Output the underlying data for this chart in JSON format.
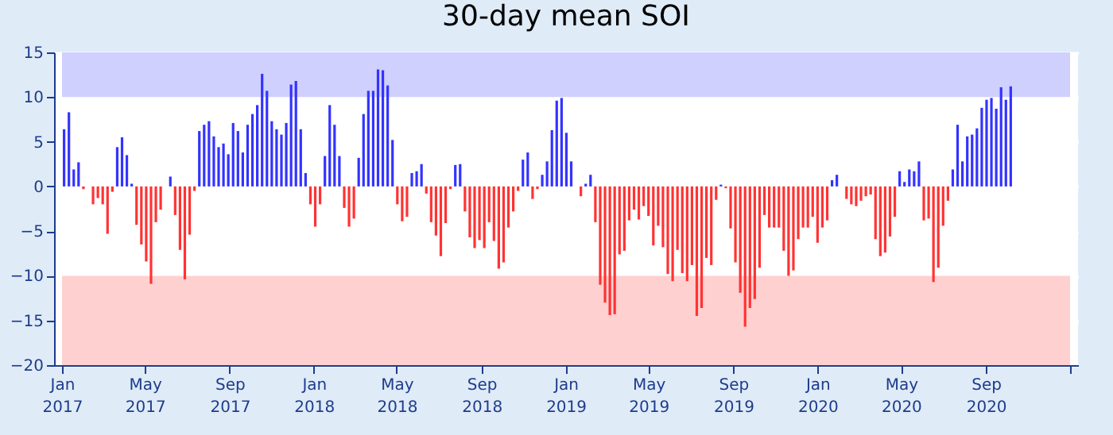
{
  "chart_data": {
    "type": "bar",
    "title": "30-day mean SOI",
    "x": [
      "2017-01-04",
      "2017-01-11",
      "2017-01-18",
      "2017-01-25",
      "2017-02-01",
      "2017-02-08",
      "2017-02-15",
      "2017-02-22",
      "2017-03-01",
      "2017-03-08",
      "2017-03-15",
      "2017-03-22",
      "2017-03-29",
      "2017-04-05",
      "2017-04-12",
      "2017-04-19",
      "2017-04-26",
      "2017-05-03",
      "2017-05-10",
      "2017-05-17",
      "2017-05-24",
      "2017-05-31",
      "2017-06-07",
      "2017-06-14",
      "2017-06-21",
      "2017-06-28",
      "2017-07-05",
      "2017-07-12",
      "2017-07-19",
      "2017-07-26",
      "2017-08-02",
      "2017-08-09",
      "2017-08-16",
      "2017-08-23",
      "2017-08-30",
      "2017-09-06",
      "2017-09-13",
      "2017-09-20",
      "2017-09-27",
      "2017-10-04",
      "2017-10-11",
      "2017-10-18",
      "2017-10-25",
      "2017-11-01",
      "2017-11-08",
      "2017-11-15",
      "2017-11-22",
      "2017-11-29",
      "2017-12-06",
      "2017-12-13",
      "2017-12-20",
      "2017-12-27",
      "2018-01-03",
      "2018-01-10",
      "2018-01-17",
      "2018-01-24",
      "2018-01-31",
      "2018-02-07",
      "2018-02-14",
      "2018-02-21",
      "2018-02-28",
      "2018-03-07",
      "2018-03-14",
      "2018-03-21",
      "2018-03-28",
      "2018-04-04",
      "2018-04-11",
      "2018-04-18",
      "2018-04-25",
      "2018-05-02",
      "2018-05-09",
      "2018-05-16",
      "2018-05-23",
      "2018-05-30",
      "2018-06-06",
      "2018-06-13",
      "2018-06-20",
      "2018-06-27",
      "2018-07-04",
      "2018-07-11",
      "2018-07-18",
      "2018-07-25",
      "2018-08-01",
      "2018-08-08",
      "2018-08-15",
      "2018-08-22",
      "2018-08-29",
      "2018-09-05",
      "2018-09-12",
      "2018-09-19",
      "2018-09-26",
      "2018-10-03",
      "2018-10-10",
      "2018-10-17",
      "2018-10-24",
      "2018-10-31",
      "2018-11-07",
      "2018-11-14",
      "2018-11-21",
      "2018-11-28",
      "2018-12-05",
      "2018-12-12",
      "2018-12-19",
      "2018-12-26",
      "2019-01-02",
      "2019-01-09",
      "2019-01-16",
      "2019-01-23",
      "2019-01-30",
      "2019-02-06",
      "2019-02-13",
      "2019-02-20",
      "2019-02-27",
      "2019-03-06",
      "2019-03-13",
      "2019-03-20",
      "2019-03-27",
      "2019-04-03",
      "2019-04-10",
      "2019-04-17",
      "2019-04-24",
      "2019-05-01",
      "2019-05-08",
      "2019-05-15",
      "2019-05-22",
      "2019-05-29",
      "2019-06-05",
      "2019-06-12",
      "2019-06-19",
      "2019-06-26",
      "2019-07-03",
      "2019-07-10",
      "2019-07-17",
      "2019-07-24",
      "2019-07-31",
      "2019-08-07",
      "2019-08-14",
      "2019-08-21",
      "2019-08-28",
      "2019-09-04",
      "2019-09-11",
      "2019-09-18",
      "2019-09-25",
      "2019-10-02",
      "2019-10-09",
      "2019-10-16",
      "2019-10-23",
      "2019-10-30",
      "2019-11-06",
      "2019-11-13",
      "2019-11-20",
      "2019-11-27",
      "2019-12-04",
      "2019-12-11",
      "2019-12-18",
      "2019-12-25",
      "2020-01-01",
      "2020-01-08",
      "2020-01-15",
      "2020-01-22",
      "2020-01-29",
      "2020-02-05",
      "2020-02-12",
      "2020-02-19",
      "2020-02-26",
      "2020-03-04",
      "2020-03-11",
      "2020-03-18",
      "2020-03-25",
      "2020-04-01",
      "2020-04-08",
      "2020-04-15",
      "2020-04-22",
      "2020-04-29",
      "2020-05-06",
      "2020-05-13",
      "2020-05-20",
      "2020-05-27",
      "2020-06-03",
      "2020-06-10",
      "2020-06-17",
      "2020-06-24",
      "2020-07-01",
      "2020-07-08",
      "2020-07-15",
      "2020-07-22",
      "2020-07-29",
      "2020-08-05",
      "2020-08-12",
      "2020-08-19",
      "2020-08-26",
      "2020-09-02",
      "2020-09-09",
      "2020-09-16",
      "2020-09-23",
      "2020-09-30",
      "2020-10-07"
    ],
    "values": [
      6.4,
      8.3,
      1.9,
      2.7,
      -0.3,
      null,
      -2.0,
      -1.3,
      -2.0,
      -5.3,
      -0.6,
      4.4,
      5.5,
      3.5,
      0.3,
      -4.3,
      -6.5,
      -8.4,
      -10.9,
      -4.0,
      -2.6,
      null,
      1.1,
      -3.2,
      -7.1,
      -10.4,
      -5.4,
      -0.5,
      6.2,
      6.9,
      7.3,
      5.6,
      4.4,
      4.8,
      3.6,
      7.1,
      6.2,
      3.8,
      6.9,
      8.1,
      9.1,
      12.6,
      10.7,
      7.3,
      6.4,
      5.8,
      7.1,
      11.4,
      11.8,
      6.4,
      1.5,
      -2.0,
      -4.5,
      -2.0,
      3.4,
      9.1,
      6.9,
      3.4,
      -2.4,
      -4.5,
      -3.6,
      3.2,
      8.1,
      10.7,
      10.7,
      13.1,
      13.0,
      11.3,
      5.2,
      -2.0,
      -3.9,
      -3.4,
      1.5,
      1.7,
      2.5,
      -0.8,
      -4.0,
      -5.5,
      -7.8,
      -4.1,
      -0.3,
      2.4,
      2.5,
      -2.8,
      -5.7,
      -6.9,
      -6.0,
      -6.9,
      -4.0,
      -6.1,
      -9.2,
      -8.5,
      -4.6,
      -2.8,
      -0.5,
      3.0,
      3.8,
      -1.4,
      -0.3,
      1.3,
      2.8,
      6.3,
      9.6,
      9.9,
      6.0,
      2.8,
      null,
      -1.1,
      0.3,
      1.3,
      -4.0,
      -11.0,
      -13.0,
      -14.4,
      -14.3,
      -7.6,
      -7.2,
      -3.8,
      -2.6,
      -3.7,
      -2.2,
      -3.3,
      -6.6,
      -4.4,
      -6.8,
      -9.8,
      -10.6,
      -7.1,
      -9.7,
      -10.6,
      -8.8,
      -14.5,
      -13.6,
      -8.0,
      -8.8,
      -1.5,
      0.2,
      -0.2,
      -4.7,
      -8.5,
      -11.9,
      -15.7,
      -13.6,
      -12.6,
      -9.1,
      -3.2,
      -4.6,
      -4.6,
      -4.6,
      -7.2,
      -10.0,
      -9.4,
      -5.9,
      -4.6,
      -4.6,
      -3.4,
      -6.3,
      -4.6,
      -3.8,
      0.7,
      1.3,
      null,
      -1.4,
      -2.0,
      -2.2,
      -1.6,
      -1.1,
      -0.9,
      -5.9,
      -7.8,
      -7.4,
      -5.6,
      -3.4,
      1.7,
      0.5,
      1.9,
      1.7,
      2.8,
      -3.8,
      -3.6,
      -10.7,
      -9.1,
      -4.4,
      -1.6,
      1.9,
      6.9,
      2.8,
      5.6,
      5.8,
      6.5,
      8.8,
      9.7,
      9.9,
      8.7,
      11.1,
      9.7,
      11.2
    ],
    "colors": [
      "#3333ff",
      "#3333ff",
      "#3333ff",
      "#3333ff",
      "#ff3333",
      "#3333ff",
      "#ff3333",
      "#ff3333",
      "#ff3333",
      "#ff3333",
      "#ff3333",
      "#3333ff",
      "#3333ff",
      "#3333ff",
      "#3333ff",
      "#ff3333",
      "#ff3333",
      "#ff3333",
      "#ff3333",
      "#ff3333",
      "#ff3333",
      "#3333ff",
      "#3333ff",
      "#ff3333",
      "#ff3333",
      "#ff3333",
      "#ff3333",
      "#ff3333",
      "#3333ff",
      "#3333ff",
      "#3333ff",
      "#3333ff",
      "#3333ff",
      "#3333ff",
      "#3333ff",
      "#3333ff",
      "#3333ff",
      "#3333ff",
      "#3333ff",
      "#3333ff",
      "#3333ff",
      "#3333ff",
      "#3333ff",
      "#3333ff",
      "#3333ff",
      "#3333ff",
      "#3333ff",
      "#3333ff",
      "#3333ff",
      "#3333ff",
      "#3333ff",
      "#ff3333",
      "#ff3333",
      "#ff3333",
      "#3333ff",
      "#3333ff",
      "#3333ff",
      "#3333ff",
      "#ff3333",
      "#ff3333",
      "#ff3333",
      "#3333ff",
      "#3333ff",
      "#3333ff",
      "#3333ff",
      "#3333ff",
      "#3333ff",
      "#3333ff",
      "#3333ff",
      "#ff3333",
      "#ff3333",
      "#ff3333",
      "#3333ff",
      "#3333ff",
      "#3333ff",
      "#ff3333",
      "#ff3333",
      "#ff3333",
      "#ff3333",
      "#ff3333",
      "#ff3333",
      "#3333ff",
      "#3333ff",
      "#ff3333",
      "#ff3333",
      "#ff3333",
      "#ff3333",
      "#ff3333",
      "#ff3333",
      "#ff3333",
      "#ff3333",
      "#ff3333",
      "#ff3333",
      "#ff3333",
      "#ff3333",
      "#3333ff",
      "#3333ff",
      "#ff3333",
      "#ff3333",
      "#3333ff",
      "#3333ff",
      "#3333ff",
      "#3333ff",
      "#3333ff",
      "#3333ff",
      "#3333ff",
      "#3333ff",
      "#ff3333",
      "#3333ff",
      "#3333ff",
      "#ff3333",
      "#ff3333",
      "#ff3333",
      "#ff3333",
      "#ff3333",
      "#ff3333",
      "#ff3333",
      "#ff3333",
      "#ff3333",
      "#ff3333",
      "#ff3333",
      "#ff3333",
      "#ff3333",
      "#ff3333",
      "#ff3333",
      "#ff3333",
      "#ff3333",
      "#ff3333",
      "#ff3333",
      "#ff3333",
      "#ff3333",
      "#ff3333",
      "#ff3333",
      "#ff3333",
      "#ff3333",
      "#ff3333",
      "#3333ff",
      "#ff3333",
      "#ff3333",
      "#ff3333",
      "#ff3333",
      "#ff3333",
      "#ff3333",
      "#ff3333",
      "#ff3333",
      "#ff3333",
      "#ff3333",
      "#ff3333",
      "#ff3333",
      "#ff3333",
      "#ff3333",
      "#ff3333",
      "#ff3333",
      "#ff3333",
      "#ff3333",
      "#ff3333",
      "#ff3333",
      "#ff3333",
      "#ff3333",
      "#3333ff",
      "#3333ff",
      "#3333ff",
      "#ff3333",
      "#ff3333",
      "#ff3333",
      "#ff3333",
      "#ff3333",
      "#ff3333",
      "#ff3333",
      "#ff3333",
      "#ff3333",
      "#ff3333",
      "#ff3333",
      "#3333ff",
      "#3333ff",
      "#3333ff",
      "#3333ff",
      "#3333ff",
      "#ff3333",
      "#ff3333",
      "#ff3333",
      "#ff3333",
      "#ff3333",
      "#ff3333",
      "#3333ff",
      "#3333ff",
      "#3333ff",
      "#3333ff",
      "#3333ff",
      "#3333ff",
      "#3333ff",
      "#3333ff",
      "#3333ff",
      "#3333ff",
      "#3333ff",
      "#3333ff",
      "#3333ff"
    ],
    "xlim": [
      "2017-01-01",
      "2021-01-01"
    ],
    "xticks": [
      {
        "value": "2017-01",
        "label": "Jan\n2017"
      },
      {
        "value": "2017-05",
        "label": "May\n2017"
      },
      {
        "value": "2017-09",
        "label": "Sep\n2017"
      },
      {
        "value": "2018-01",
        "label": "Jan\n2018"
      },
      {
        "value": "2018-05",
        "label": "May\n2018"
      },
      {
        "value": "2018-09",
        "label": "Sep\n2018"
      },
      {
        "value": "2019-01",
        "label": "Jan\n2019"
      },
      {
        "value": "2019-05",
        "label": "May\n2019"
      },
      {
        "value": "2019-09",
        "label": "Sep\n2019"
      },
      {
        "value": "2020-01",
        "label": "Jan\n2020"
      },
      {
        "value": "2020-05",
        "label": "May\n2020"
      },
      {
        "value": "2020-09",
        "label": "Sep\n2020"
      },
      {
        "value": "2021-01",
        "label": null
      }
    ],
    "ylim": [
      -20,
      15
    ],
    "yticks": [
      -20,
      -15,
      -10,
      -5,
      0,
      5,
      10,
      15
    ],
    "bands": [
      {
        "axis": "y",
        "from": 10,
        "to": 15,
        "color": "#d0d0ff"
      },
      {
        "axis": "y",
        "from": -20,
        "to": -10,
        "color": "#ffd0d0"
      }
    ],
    "grid": true
  }
}
